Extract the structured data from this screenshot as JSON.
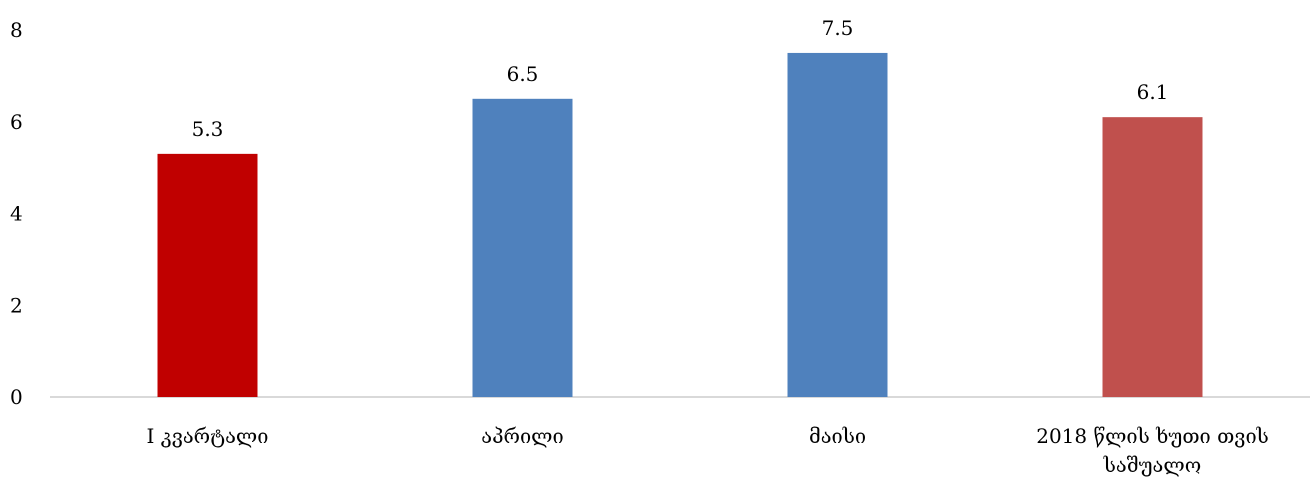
{
  "chart_data": {
    "type": "bar",
    "categories": [
      [
        "I კვარტალი"
      ],
      [
        "აპრილი"
      ],
      [
        "მაისი"
      ],
      [
        "2018 წლის ხუთი თვის",
        "საშუალო"
      ]
    ],
    "values": [
      5.3,
      6.5,
      7.5,
      6.1
    ],
    "data_labels": [
      "5.3",
      "6.5",
      "7.5",
      "6.1"
    ],
    "bar_colors": [
      "#C00000",
      "#4F81BD",
      "#4F81BD",
      "#C0504D"
    ],
    "yticks": [
      "0",
      "2",
      "4",
      "6",
      "8"
    ],
    "ylim": [
      0,
      8
    ],
    "title": "",
    "xlabel": "",
    "ylabel": "",
    "grid": false,
    "legend": "none"
  }
}
